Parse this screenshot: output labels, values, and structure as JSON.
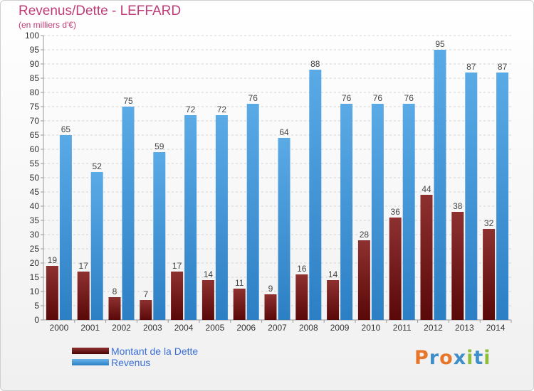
{
  "chart_data": {
    "type": "bar",
    "title": "Revenus/Dette - LEFFARD",
    "subtitle": "(en milliers d'€)",
    "categories": [
      "2000",
      "2001",
      "2002",
      "2003",
      "2004",
      "2005",
      "2006",
      "2007",
      "2008",
      "2009",
      "2010",
      "2011",
      "2012",
      "2013",
      "2014"
    ],
    "series": [
      {
        "name": "Montant de la Dette",
        "color": "#7a1a1a",
        "values": [
          19,
          17,
          8,
          7,
          17,
          14,
          11,
          9,
          16,
          14,
          28,
          36,
          44,
          38,
          32
        ]
      },
      {
        "name": "Revenus",
        "color": "#4a9fe0",
        "values": [
          65,
          52,
          75,
          59,
          72,
          72,
          76,
          64,
          88,
          76,
          76,
          76,
          95,
          87,
          87
        ]
      }
    ],
    "ylim": [
      0,
      100
    ],
    "yticks": [
      0,
      5,
      10,
      15,
      20,
      25,
      30,
      35,
      40,
      45,
      50,
      55,
      60,
      65,
      70,
      75,
      80,
      85,
      90,
      95,
      100
    ],
    "grid": true,
    "legend_position": "bottom-left"
  },
  "logo": {
    "text": "Proxiti",
    "letters": [
      {
        "ch": "P",
        "color": "#e8762a"
      },
      {
        "ch": "r",
        "color": "#3d8ec9"
      },
      {
        "ch": "o",
        "color": "#e8762a"
      },
      {
        "ch": "x",
        "color": "#3d8ec9"
      },
      {
        "ch": "i",
        "color": "#8fbf3a"
      },
      {
        "ch": "t",
        "color": "#3d8ec9"
      },
      {
        "ch": "i",
        "color": "#8fbf3a"
      }
    ]
  }
}
